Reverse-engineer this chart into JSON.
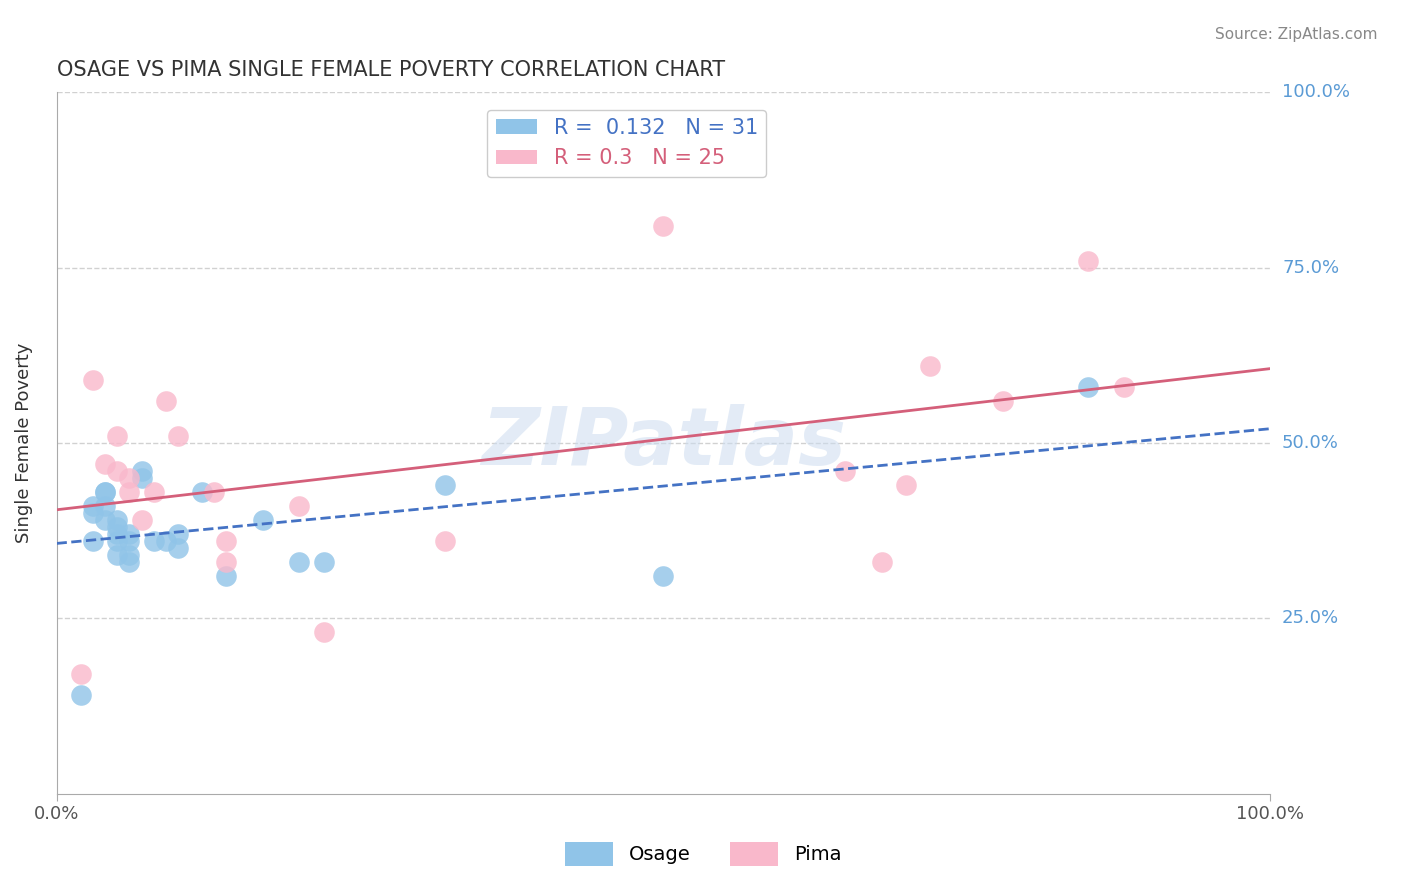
{
  "title": "OSAGE VS PIMA SINGLE FEMALE POVERTY CORRELATION CHART",
  "source": "Source: ZipAtlas.com",
  "ylabel": "Single Female Poverty",
  "xlim": [
    0.0,
    1.0
  ],
  "ylim": [
    0.0,
    1.0
  ],
  "osage_R": 0.132,
  "osage_N": 31,
  "pima_R": 0.3,
  "pima_N": 25,
  "osage_color": "#90c4e8",
  "pima_color": "#f9b8cb",
  "osage_line_color": "#4472c4",
  "pima_line_color": "#d45f7a",
  "watermark": "ZIPatlas",
  "right_label_color": "#5b9bd5",
  "osage_x": [
    0.02,
    0.03,
    0.03,
    0.03,
    0.04,
    0.04,
    0.04,
    0.04,
    0.05,
    0.05,
    0.05,
    0.05,
    0.05,
    0.06,
    0.06,
    0.06,
    0.06,
    0.07,
    0.07,
    0.08,
    0.09,
    0.1,
    0.1,
    0.12,
    0.14,
    0.17,
    0.2,
    0.22,
    0.32,
    0.5,
    0.85
  ],
  "osage_y": [
    0.14,
    0.41,
    0.4,
    0.36,
    0.43,
    0.43,
    0.41,
    0.39,
    0.39,
    0.38,
    0.37,
    0.36,
    0.34,
    0.37,
    0.36,
    0.34,
    0.33,
    0.46,
    0.45,
    0.36,
    0.36,
    0.37,
    0.35,
    0.43,
    0.31,
    0.39,
    0.33,
    0.33,
    0.44,
    0.31,
    0.58
  ],
  "pima_x": [
    0.02,
    0.03,
    0.04,
    0.05,
    0.05,
    0.06,
    0.06,
    0.07,
    0.08,
    0.09,
    0.1,
    0.13,
    0.14,
    0.14,
    0.2,
    0.22,
    0.32,
    0.5,
    0.65,
    0.68,
    0.7,
    0.72,
    0.78,
    0.85,
    0.88
  ],
  "pima_y": [
    0.17,
    0.59,
    0.47,
    0.51,
    0.46,
    0.45,
    0.43,
    0.39,
    0.43,
    0.56,
    0.51,
    0.43,
    0.36,
    0.33,
    0.41,
    0.23,
    0.36,
    0.81,
    0.46,
    0.33,
    0.44,
    0.61,
    0.56,
    0.76,
    0.58
  ]
}
